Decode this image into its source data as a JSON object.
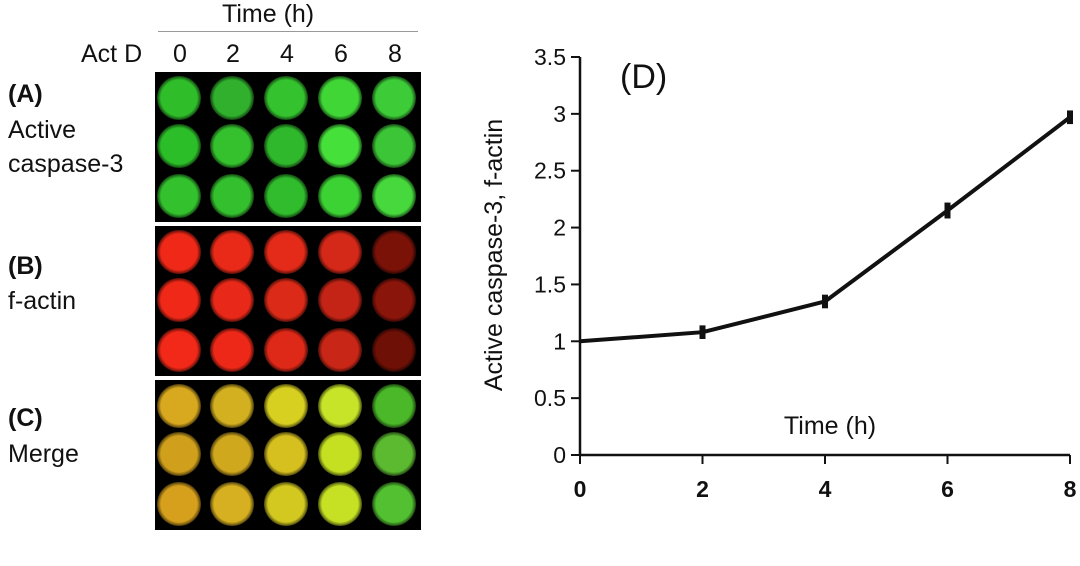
{
  "left": {
    "time_header": "Time (h)",
    "actd_label": "Act D",
    "time_points": [
      "0",
      "2",
      "4",
      "6",
      "8"
    ],
    "panels": [
      {
        "tag": "(A)",
        "line1": "Active",
        "line2": "caspase-3",
        "wells": [
          [
            "#2fbe2a",
            "#30b02c",
            "#34c22e",
            "#3fd636",
            "#3dcc38"
          ],
          [
            "#2cbe28",
            "#35c02e",
            "#30b82c",
            "#46e03b",
            "#3cc536"
          ],
          [
            "#33c22d",
            "#34c02e",
            "#30bc2c",
            "#3dd234",
            "#46d83c"
          ]
        ]
      },
      {
        "tag": "(B)",
        "line1": "f-actin",
        "line2": "",
        "wells": [
          [
            "#f02818",
            "#ea2a18",
            "#e42a18",
            "#d42818",
            "#7a1208"
          ],
          [
            "#f02818",
            "#e82818",
            "#dc2a18",
            "#c42416",
            "#8a150a"
          ],
          [
            "#f22818",
            "#ee2818",
            "#de2818",
            "#c82616",
            "#6e1006"
          ]
        ]
      },
      {
        "tag": "(C)",
        "line1": "Merge",
        "line2": "",
        "wells": [
          [
            "#d8a81e",
            "#d2b020",
            "#d8d020",
            "#c8e428",
            "#4ab828"
          ],
          [
            "#d0a01c",
            "#d0a81e",
            "#d6c020",
            "#c4e020",
            "#5cba30"
          ],
          [
            "#d6a01c",
            "#d6b020",
            "#d2c820",
            "#c6e024",
            "#52c030"
          ]
        ]
      }
    ]
  },
  "chart_data": {
    "type": "line",
    "panel_label": "(D)",
    "title": "",
    "xlabel": "Time (h)",
    "ylabel": "Active caspase-3, f-actin",
    "x": [
      0,
      2,
      4,
      6,
      8
    ],
    "y": [
      1.0,
      1.08,
      1.35,
      2.15,
      2.97
    ],
    "yerr": [
      0.0,
      0.06,
      0.06,
      0.07,
      0.06
    ],
    "xticks": [
      "0",
      "2",
      "4",
      "6",
      "8"
    ],
    "yticks": [
      "0",
      "0.5",
      "1",
      "1.5",
      "2",
      "2.5",
      "3",
      "3.5"
    ],
    "xlim": [
      0,
      8
    ],
    "ylim": [
      0,
      3.5
    ],
    "color": "#111111"
  }
}
